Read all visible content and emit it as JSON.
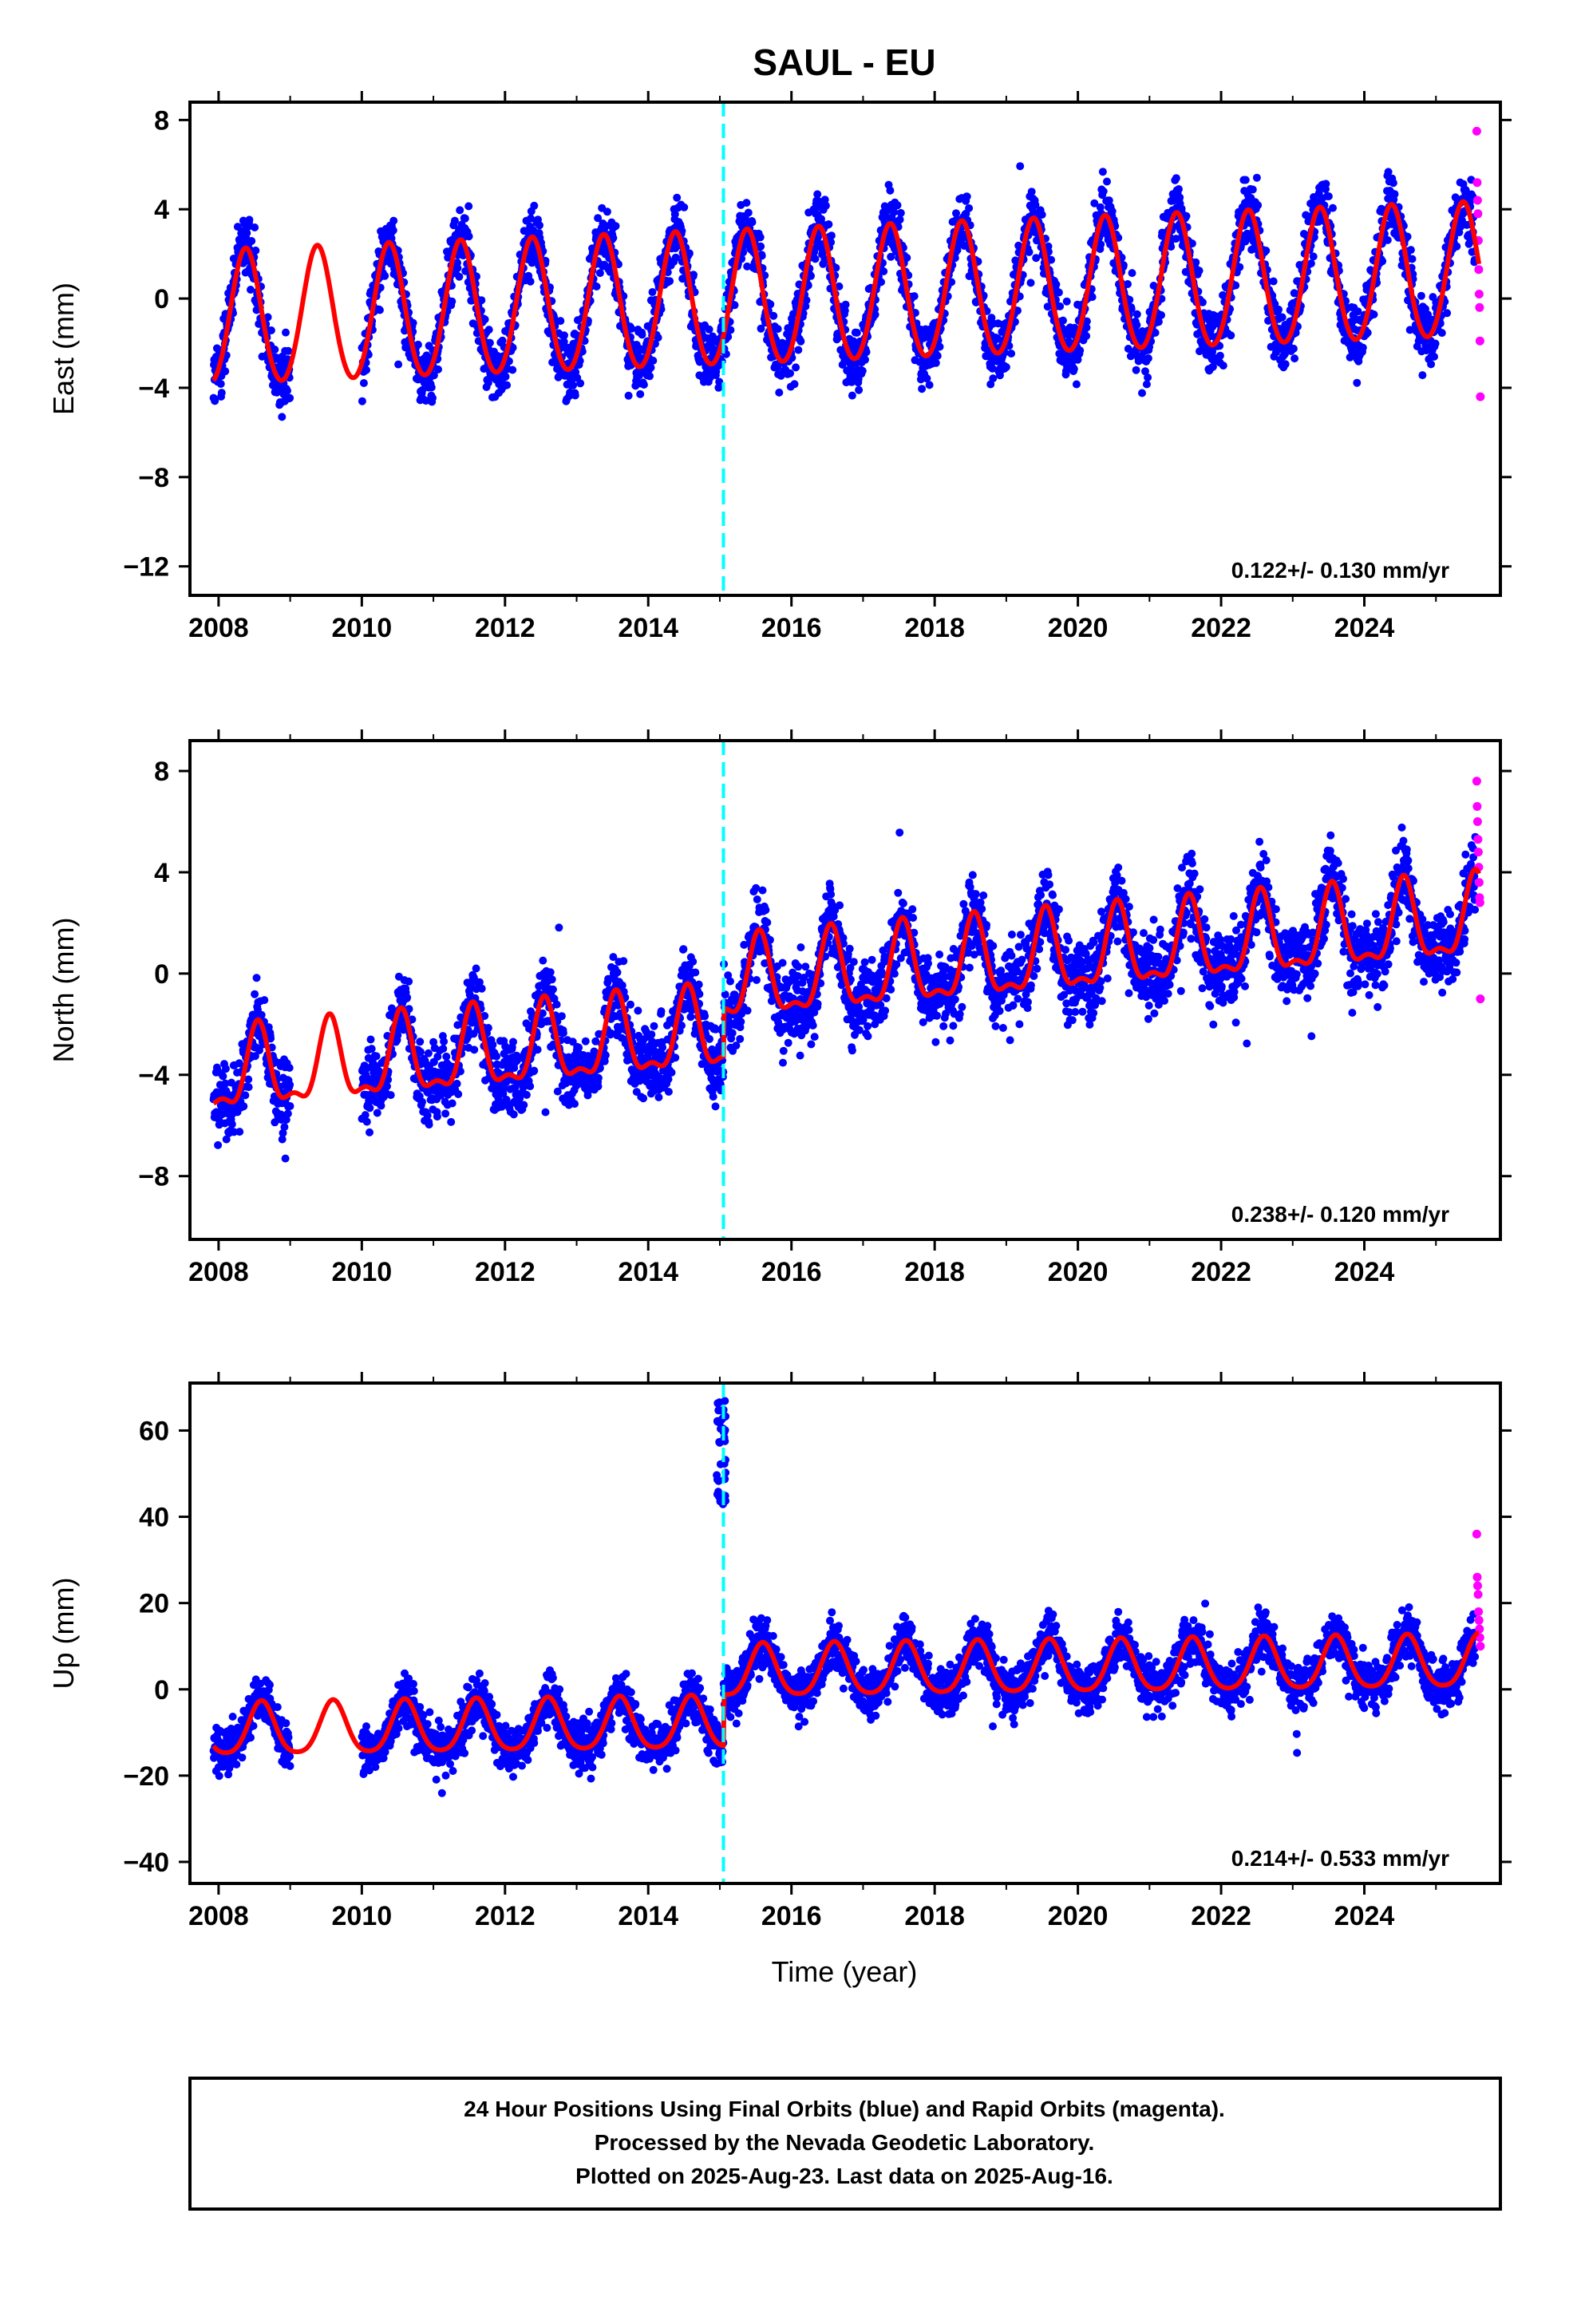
{
  "title": "SAUL - EU",
  "xlabel": "Time (year)",
  "footer": {
    "line1": "24 Hour Positions Using Final Orbits (blue) and Rapid Orbits (magenta).",
    "line2": "Processed by the Nevada Geodetic Laboratory.",
    "line3": "Plotted on 2025-Aug-23. Last data on 2025-Aug-16."
  },
  "colors": {
    "final_orbits": "#0000ff",
    "rapid_orbits": "#ff00ff",
    "model_fit": "#ff0000",
    "offset_line": "#00ffff",
    "frame": "#000000"
  },
  "chart_data": [
    {
      "type": "scatter",
      "component": "east",
      "ylabel": "East (mm)",
      "xlim": [
        2007.6,
        2025.9
      ],
      "ylim": [
        -13.3,
        8.8
      ],
      "xticks": [
        2008,
        2010,
        2012,
        2014,
        2016,
        2018,
        2020,
        2022,
        2024
      ],
      "xtick_labels": [
        "2008",
        "2010",
        "2012",
        "2014",
        "2016",
        "2018",
        "2020",
        "2022",
        "2024"
      ],
      "yticks": [
        -12,
        -8,
        -4,
        0,
        4,
        8
      ],
      "ytick_labels": [
        "−12",
        "−8",
        "−4",
        "0",
        "4",
        "8"
      ],
      "rate_label": "0.122+/- 0.130 mm/yr",
      "offset_epoch": 2015.05,
      "model": {
        "trend": 0.0,
        "rate": 0.122,
        "ref_year": 2016.0,
        "annual_amp": 3.0,
        "annual_phase_peak": 0.38,
        "semiannual_amp": 0.2,
        "offset": 0.0
      },
      "noise_mm": 1.2,
      "data_span": [
        2007.93,
        2025.55
      ],
      "gaps": [
        [
          2009.0,
          2010.0
        ]
      ],
      "rapid_span": [
        2025.57,
        2025.62
      ],
      "rapid_values": [
        7.5,
        5.2,
        4.4,
        3.8,
        2.6,
        1.3,
        0.2,
        -0.4,
        -1.9,
        -4.4
      ],
      "series": [
        {
          "name": "Final Orbits (blue)",
          "role": "final"
        },
        {
          "name": "Rapid Orbits (magenta)",
          "role": "rapid"
        }
      ]
    },
    {
      "type": "scatter",
      "component": "north",
      "ylabel": "North (mm)",
      "xlim": [
        2007.6,
        2025.9
      ],
      "ylim": [
        -10.5,
        9.2
      ],
      "xticks": [
        2008,
        2010,
        2012,
        2014,
        2016,
        2018,
        2020,
        2022,
        2024
      ],
      "xtick_labels": [
        "2008",
        "2010",
        "2012",
        "2014",
        "2016",
        "2018",
        "2020",
        "2022",
        "2024"
      ],
      "yticks": [
        -8,
        -4,
        0,
        4,
        8
      ],
      "ytick_labels": [
        "−8",
        "−4",
        "0",
        "4",
        "8"
      ],
      "rate_label": "0.238+/- 0.120 mm/yr",
      "offset_epoch": 2015.05,
      "model": {
        "trend": -1.2,
        "rate": 0.238,
        "ref_year": 2016.0,
        "annual_amp": 1.5,
        "annual_phase_peak": 0.55,
        "semiannual_amp": 0.6,
        "offset": 1.9
      },
      "noise_mm": 1.2,
      "data_span": [
        2007.93,
        2025.55
      ],
      "gaps": [
        [
          2009.0,
          2010.0
        ]
      ],
      "rapid_span": [
        2025.57,
        2025.62
      ],
      "rapid_values": [
        7.6,
        6.6,
        6.0,
        5.3,
        4.8,
        4.2,
        3.6,
        3.0,
        2.8,
        -1.0
      ],
      "series": [
        {
          "name": "Final Orbits (blue)",
          "role": "final"
        },
        {
          "name": "Rapid Orbits (magenta)",
          "role": "rapid"
        }
      ]
    },
    {
      "type": "scatter",
      "component": "up",
      "ylabel": "Up (mm)",
      "xlim": [
        2007.6,
        2025.9
      ],
      "ylim": [
        -45,
        71
      ],
      "xticks": [
        2008,
        2010,
        2012,
        2014,
        2016,
        2018,
        2020,
        2022,
        2024
      ],
      "xtick_labels": [
        "2008",
        "2010",
        "2012",
        "2014",
        "2016",
        "2018",
        "2020",
        "2022",
        "2024"
      ],
      "yticks": [
        -40,
        -20,
        0,
        20,
        40,
        60
      ],
      "ytick_labels": [
        "−40",
        "−20",
        "0",
        "20",
        "40",
        "60"
      ],
      "rate_label": "0.214+/- 0.533 mm/yr",
      "offset_epoch": 2015.05,
      "model": {
        "trend": -2.0,
        "rate": 0.214,
        "ref_year": 2016.0,
        "annual_amp": 6.0,
        "annual_phase_peak": 0.6,
        "semiannual_amp": 1.0,
        "offset": 12.0
      },
      "noise_mm": 4.5,
      "data_span": [
        2007.93,
        2025.55
      ],
      "gaps": [
        [
          2009.0,
          2010.0
        ]
      ],
      "outlier_cluster": {
        "x_range": [
          2014.95,
          2015.08
        ],
        "y_range": [
          42,
          68
        ]
      },
      "rapid_span": [
        2025.57,
        2025.62
      ],
      "rapid_values": [
        36.0,
        26.0,
        24.0,
        22.0,
        18.0,
        16.0,
        14.0,
        12.0,
        10.0
      ],
      "series": [
        {
          "name": "Final Orbits (blue)",
          "role": "final"
        },
        {
          "name": "Rapid Orbits (magenta)",
          "role": "rapid"
        }
      ]
    }
  ]
}
